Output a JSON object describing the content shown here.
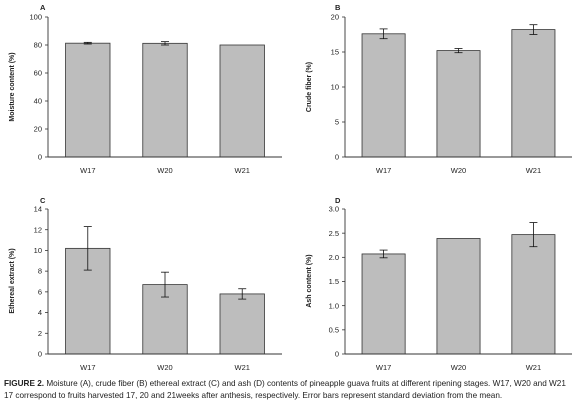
{
  "chart_data": [
    {
      "type": "bar",
      "panel": "A",
      "ylabel": "Moisture content (%)",
      "categories": [
        "W17",
        "W20",
        "W21"
      ],
      "values": [
        81.3,
        81.2,
        80.0
      ],
      "errors": [
        0.6,
        1.2,
        0.0
      ],
      "ylim": [
        0,
        100
      ],
      "yticks": [
        "0",
        "20",
        "40",
        "60",
        "80",
        "100"
      ]
    },
    {
      "type": "bar",
      "panel": "B",
      "ylabel": "Crude fiber (%)",
      "categories": [
        "W17",
        "W20",
        "W21"
      ],
      "values": [
        17.6,
        15.2,
        18.2
      ],
      "errors": [
        0.7,
        0.3,
        0.7
      ],
      "ylim": [
        0,
        20
      ],
      "yticks": [
        "0",
        "5",
        "10",
        "15",
        "20"
      ]
    },
    {
      "type": "bar",
      "panel": "C",
      "ylabel": "Ethereal extract (%)",
      "categories": [
        "W17",
        "W20",
        "W21"
      ],
      "values": [
        10.2,
        6.7,
        5.8
      ],
      "errors": [
        2.1,
        1.2,
        0.5
      ],
      "ylim": [
        0,
        14
      ],
      "yticks": [
        "0",
        "2",
        "4",
        "6",
        "8",
        "10",
        "12",
        "14"
      ]
    },
    {
      "type": "bar",
      "panel": "D",
      "ylabel": "Ash content (%)",
      "categories": [
        "W17",
        "W20",
        "W21"
      ],
      "values": [
        2.07,
        2.39,
        2.47
      ],
      "errors": [
        0.08,
        0.0,
        0.25
      ],
      "ylim": [
        0,
        3.0
      ],
      "yticks": [
        "0",
        "0.5",
        "1.0",
        "1.5",
        "2.0",
        "2.5",
        "3.0"
      ]
    }
  ],
  "caption": {
    "label": "FIGURE 2.",
    "text": " Moisture (A), crude fiber (B) ethereal extract (C) and ash (D) contents of pineapple guava fruits at different ripening stages. W17, W20 and W21 17 correspond to fruits harvested 17, 20 and 21weeks after anthesis, respectively. Error bars represent standard deviation from the mean."
  },
  "colors": {
    "bar_fill": "#bdbdbd",
    "bar_stroke": "#333333",
    "axis": "#333333"
  }
}
